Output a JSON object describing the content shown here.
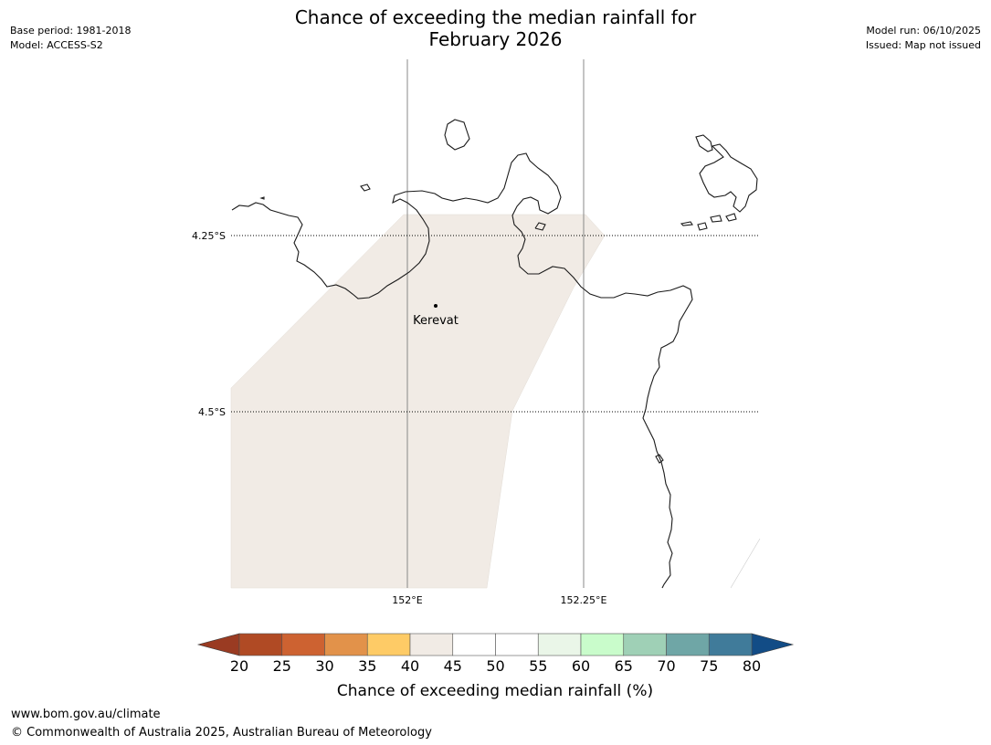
{
  "title": {
    "line1": "Chance of exceeding the median rainfall for",
    "line2": "February 2026"
  },
  "meta": {
    "base_period": "Base period: 1981-2018",
    "model": "Model: ACCESS-S2",
    "model_run": "Model run: 06/10/2025",
    "issued": "Issued: Map not issued"
  },
  "map": {
    "lat_labels": [
      "4.25°S",
      "4.5°S"
    ],
    "lon_labels": [
      "152°E",
      "152.25°E"
    ],
    "town": "Kerevat",
    "shaded_band": "40-45",
    "coast_color": "#1a1a1a",
    "shade_color": "#f1ebe5"
  },
  "legend": {
    "title": "Chance of exceeding median rainfall (%)",
    "ticks": [
      "20",
      "25",
      "30",
      "35",
      "40",
      "45",
      "50",
      "55",
      "60",
      "65",
      "70",
      "75",
      "80"
    ],
    "low_extend_color": "#9a3b22",
    "high_extend_color": "#124c86",
    "colors": [
      "#b04a24",
      "#cd6231",
      "#e2924a",
      "#fecb66",
      "#f1ebe5",
      "#ffffff",
      "#ffffff",
      "#eaf6e8",
      "#c9fccb",
      "#9fd0b6",
      "#6fa6a6",
      "#407b9a"
    ]
  },
  "footer": {
    "url": "www.bom.gov.au/climate",
    "copyright": "© Commonwealth of Australia 2025, Australian Bureau of Meteorology"
  }
}
